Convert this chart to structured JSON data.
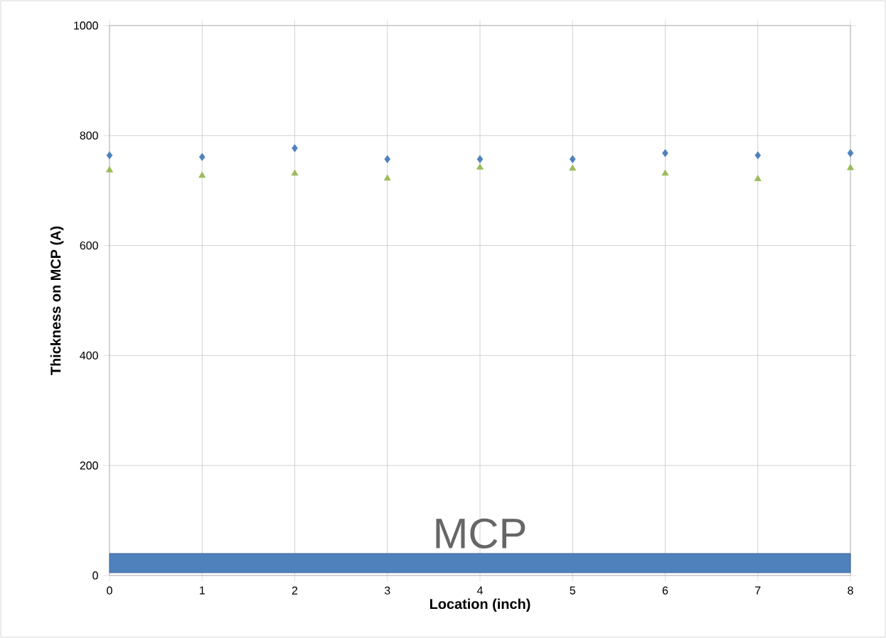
{
  "chart_data": {
    "type": "scatter",
    "xlabel": "Location (inch)",
    "ylabel": "Thickness on MCP (A)",
    "x": [
      0,
      1,
      2,
      3,
      4,
      5,
      6,
      7,
      8
    ],
    "series": [
      {
        "color": "#4f81bd",
        "marker": "diamond",
        "values": [
          764,
          761,
          777,
          757,
          757,
          757,
          768,
          764,
          768
        ]
      },
      {
        "color": "#9bbb59",
        "marker": "triangle",
        "values": [
          737,
          727,
          731,
          722,
          742,
          740,
          731,
          721,
          741
        ]
      }
    ],
    "xlim": [
      0,
      8
    ],
    "ylim": [
      0,
      1000
    ],
    "xticks": [
      0,
      1,
      2,
      3,
      4,
      5,
      6,
      7,
      8
    ],
    "yticks": [
      0,
      200,
      400,
      600,
      800,
      1000
    ],
    "grid": true,
    "bands": [
      {
        "axis": "y",
        "from": 5,
        "to": 40,
        "label": "MCP",
        "color": "#4f81bd"
      }
    ]
  }
}
